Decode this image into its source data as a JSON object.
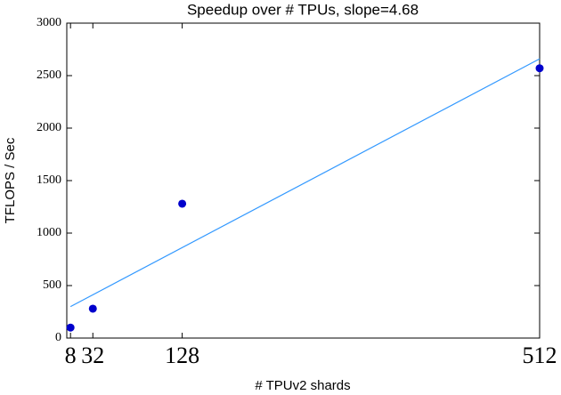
{
  "chart_data": {
    "type": "scatter",
    "title": "Speedup over # TPUs, slope=4.68",
    "x_label": "# TPUv2 shards",
    "y_label": "TFLOPS / Sec",
    "series": [
      {
        "type": "scatter",
        "color": "#0000cc",
        "x": [
          8,
          32,
          128,
          512
        ],
        "values": [
          100,
          280,
          1280,
          2570
        ]
      },
      {
        "type": "line",
        "color": "#3399ff",
        "x": [
          8,
          512
        ],
        "values": [
          300,
          2660
        ]
      }
    ],
    "xlim": [
      4,
      512
    ],
    "xticks": [
      8,
      32,
      128,
      512
    ],
    "ylim": [
      0,
      3000
    ],
    "yticks": [
      0,
      500,
      1000,
      1500,
      2000,
      2500,
      3000
    ],
    "grid": false
  }
}
